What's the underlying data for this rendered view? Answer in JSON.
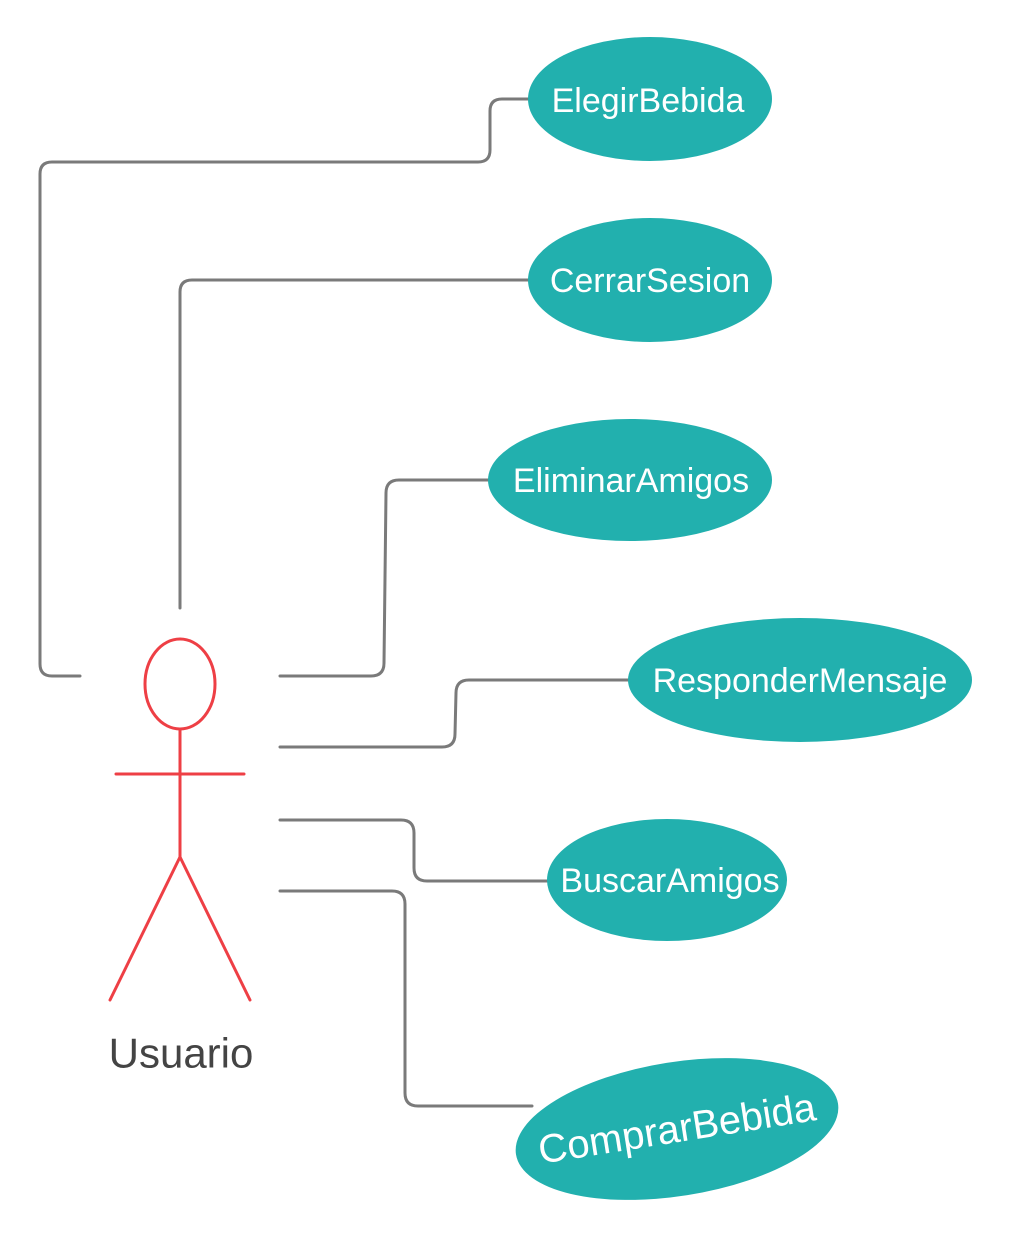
{
  "colors": {
    "use_case_fill": "#22b0ae",
    "use_case_text": "#ffffff",
    "actor_stroke": "#ee3f45",
    "actor_label": "#444444",
    "connector": "#7a7a7a",
    "background": "#ffffff"
  },
  "actor": {
    "label": "Usuario"
  },
  "use_cases": [
    {
      "id": "elegir-bebida",
      "label": "ElegirBebida"
    },
    {
      "id": "cerrar-sesion",
      "label": "CerrarSesion"
    },
    {
      "id": "eliminar-amigos",
      "label": "EliminarAmigos"
    },
    {
      "id": "responder-mensaje",
      "label": "ResponderMensaje"
    },
    {
      "id": "buscar-amigos",
      "label": "BuscarAmigos"
    },
    {
      "id": "comprar-bebida",
      "label": "ComprarBebida"
    }
  ]
}
